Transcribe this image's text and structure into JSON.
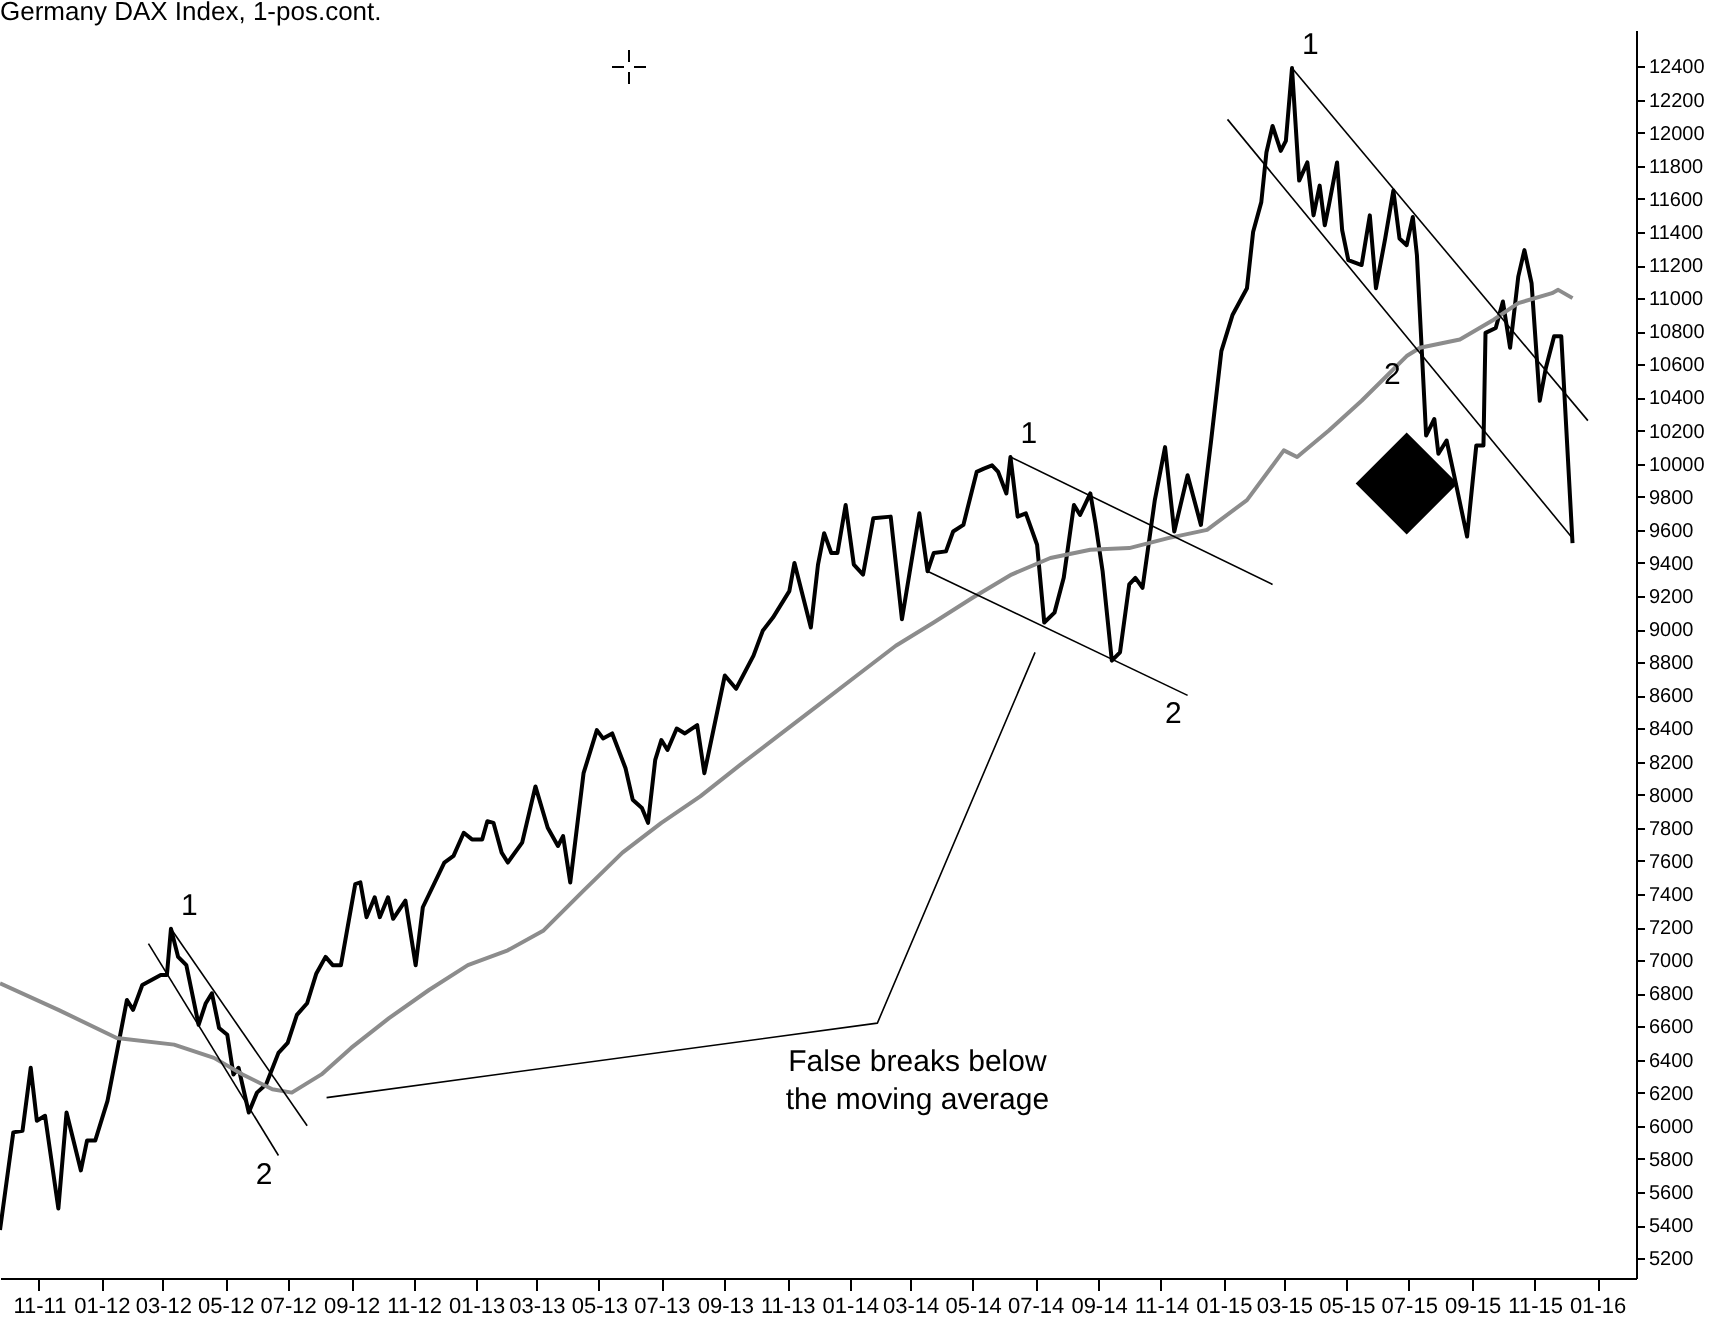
{
  "chart_data": {
    "type": "line",
    "title": "Germany DAX Index, 1-pos.cont.",
    "xlim": [
      "2011-09-24",
      "2016-02-08"
    ],
    "xticks": [
      {
        "value": "2011-11-01",
        "label": "11-11"
      },
      {
        "value": "2012-01-01",
        "label": "01-12"
      },
      {
        "value": "2012-03-01",
        "label": "03-12"
      },
      {
        "value": "2012-05-01",
        "label": "05-12"
      },
      {
        "value": "2012-07-01",
        "label": "07-12"
      },
      {
        "value": "2012-09-01",
        "label": "09-12"
      },
      {
        "value": "2012-11-01",
        "label": "11-12"
      },
      {
        "value": "2013-01-01",
        "label": "01-13"
      },
      {
        "value": "2013-03-01",
        "label": "03-13"
      },
      {
        "value": "2013-05-01",
        "label": "05-13"
      },
      {
        "value": "2013-07-01",
        "label": "07-13"
      },
      {
        "value": "2013-09-01",
        "label": "09-13"
      },
      {
        "value": "2013-11-01",
        "label": "11-13"
      },
      {
        "value": "2014-01-01",
        "label": "01-14"
      },
      {
        "value": "2014-03-01",
        "label": "03-14"
      },
      {
        "value": "2014-05-01",
        "label": "05-14"
      },
      {
        "value": "2014-07-01",
        "label": "07-14"
      },
      {
        "value": "2014-09-01",
        "label": "09-14"
      },
      {
        "value": "2014-11-01",
        "label": "11-14"
      },
      {
        "value": "2015-01-01",
        "label": "01-15"
      },
      {
        "value": "2015-03-01",
        "label": "03-15"
      },
      {
        "value": "2015-05-01",
        "label": "05-15"
      },
      {
        "value": "2015-07-01",
        "label": "07-15"
      },
      {
        "value": "2015-09-01",
        "label": "09-15"
      },
      {
        "value": "2015-11-01",
        "label": "11-15"
      },
      {
        "value": "2016-01-01",
        "label": "01-16"
      }
    ],
    "ylim": [
      5080,
      12620
    ],
    "yticks": [
      5200,
      5400,
      5600,
      5800,
      6000,
      6200,
      6400,
      6600,
      6800,
      7000,
      7200,
      7400,
      7600,
      7800,
      8000,
      8200,
      8400,
      8600,
      8800,
      9000,
      9200,
      9400,
      9600,
      9800,
      10000,
      10200,
      10400,
      10600,
      10800,
      11000,
      11200,
      11400,
      11600,
      11800,
      12000,
      12200,
      12400
    ],
    "annotations": [
      {
        "text": "1",
        "x": "2012-03-09",
        "y": 7190
      },
      {
        "text": "2",
        "x": "2012-06-22",
        "y": 5820
      },
      {
        "text": "1",
        "x": "2014-06-07",
        "y": 10040
      },
      {
        "text": "2",
        "x": "2014-11-27",
        "y": 8600
      },
      {
        "text": "1",
        "x": "2015-03-09",
        "y": 12390
      },
      {
        "text": "2",
        "x": "2015-06-29",
        "y": 10650
      },
      {
        "text": "False breaks below\nthe moving average",
        "x": "2014-01-28",
        "y": 6620
      }
    ],
    "series": [
      {
        "color": "#000000",
        "x": [
          "2011-09-24",
          "2011-10-07",
          "2011-10-16",
          "2011-10-24",
          "2011-10-30",
          "2011-11-07",
          "2011-11-20",
          "2011-11-28",
          "2011-12-12",
          "2011-12-18",
          "2011-12-26",
          "2012-01-07",
          "2012-01-26",
          "2012-02-01",
          "2012-02-10",
          "2012-02-19",
          "2012-02-28",
          "2012-03-05",
          "2012-03-09",
          "2012-03-16",
          "2012-03-24",
          "2012-04-05",
          "2012-04-12",
          "2012-04-18",
          "2012-04-25",
          "2012-05-03",
          "2012-05-09",
          "2012-05-14",
          "2012-05-24",
          "2012-06-01",
          "2012-06-10",
          "2012-06-22",
          "2012-07-01",
          "2012-07-10",
          "2012-07-20",
          "2012-07-29",
          "2012-08-07",
          "2012-08-14",
          "2012-08-22",
          "2012-09-05",
          "2012-09-10",
          "2012-09-16",
          "2012-09-24",
          "2012-09-29",
          "2012-10-07",
          "2012-10-12",
          "2012-10-24",
          "2012-11-03",
          "2012-11-10",
          "2012-12-01",
          "2012-12-10",
          "2012-12-20",
          "2012-12-28",
          "2013-01-07",
          "2013-01-12",
          "2013-01-18",
          "2013-01-26",
          "2013-02-01",
          "2013-02-15",
          "2013-02-28",
          "2013-03-12",
          "2013-03-22",
          "2013-03-27",
          "2013-04-03",
          "2013-04-16",
          "2013-04-29",
          "2013-05-05",
          "2013-05-14",
          "2013-05-27",
          "2013-06-03",
          "2013-06-12",
          "2013-06-18",
          "2013-06-25",
          "2013-07-01",
          "2013-07-07",
          "2013-07-16",
          "2013-07-24",
          "2013-08-05",
          "2013-08-12",
          "2013-09-01",
          "2013-09-12",
          "2013-09-29",
          "2013-10-08",
          "2013-10-18",
          "2013-11-03",
          "2013-11-08",
          "2013-11-24",
          "2013-12-01",
          "2013-12-07",
          "2013-12-14",
          "2013-12-20",
          "2013-12-28",
          "2014-01-05",
          "2014-01-14",
          "2014-01-24",
          "2014-02-10",
          "2014-02-21",
          "2014-03-10",
          "2014-03-18",
          "2014-03-24",
          "2014-04-05",
          "2014-04-12",
          "2014-04-22",
          "2014-05-05",
          "2014-05-12",
          "2014-05-20",
          "2014-05-26",
          "2014-06-03",
          "2014-06-07",
          "2014-06-14",
          "2014-06-22",
          "2014-07-03",
          "2014-07-10",
          "2014-07-20",
          "2014-07-29",
          "2014-08-08",
          "2014-08-14",
          "2014-08-24",
          "2014-08-29",
          "2014-09-05",
          "2014-09-14",
          "2014-09-22",
          "2014-10-01",
          "2014-10-07",
          "2014-10-14",
          "2014-10-26",
          "2014-11-05",
          "2014-11-14",
          "2014-11-27",
          "2014-12-10",
          "2014-12-20",
          "2014-12-30",
          "2015-01-10",
          "2015-01-24",
          "2015-01-30",
          "2015-02-07",
          "2015-02-12",
          "2015-02-18",
          "2015-02-26",
          "2015-03-03",
          "2015-03-09",
          "2015-03-16",
          "2015-03-24",
          "2015-03-30",
          "2015-04-05",
          "2015-04-10",
          "2015-04-14",
          "2015-04-22",
          "2015-04-27",
          "2015-05-03",
          "2015-05-16",
          "2015-05-24",
          "2015-05-30",
          "2015-06-08",
          "2015-06-16",
          "2015-06-22",
          "2015-06-29",
          "2015-07-05",
          "2015-07-09",
          "2015-07-18",
          "2015-07-26",
          "2015-07-30",
          "2015-08-07",
          "2015-08-14",
          "2015-08-27",
          "2015-09-05",
          "2015-09-12",
          "2015-09-14",
          "2015-09-24",
          "2015-10-01",
          "2015-10-08",
          "2015-10-16",
          "2015-10-22",
          "2015-10-29",
          "2015-11-06",
          "2015-11-12",
          "2015-11-20",
          "2015-11-27",
          "2015-12-08"
        ],
        "values": [
          5370,
          5960,
          5970,
          6350,
          6030,
          6060,
          5500,
          6080,
          5730,
          5910,
          5910,
          6150,
          6760,
          6700,
          6850,
          6880,
          6910,
          6910,
          7190,
          7020,
          6970,
          6610,
          6740,
          6800,
          6590,
          6550,
          6310,
          6350,
          6080,
          6200,
          6250,
          6440,
          6500,
          6670,
          6740,
          6920,
          7020,
          6970,
          6970,
          7460,
          7470,
          7260,
          7380,
          7260,
          7380,
          7250,
          7360,
          6970,
          7320,
          7590,
          7630,
          7770,
          7730,
          7730,
          7840,
          7830,
          7650,
          7590,
          7710,
          8050,
          7800,
          7690,
          7750,
          7470,
          8130,
          8390,
          8340,
          8370,
          8160,
          7970,
          7920,
          7830,
          8210,
          8330,
          8270,
          8400,
          8370,
          8420,
          8130,
          8720,
          8640,
          8840,
          8990,
          9070,
          9230,
          9400,
          9010,
          9390,
          9580,
          9460,
          9460,
          9750,
          9390,
          9330,
          9670,
          9680,
          9060,
          9700,
          9350,
          9460,
          9470,
          9590,
          9630,
          9950,
          9970,
          9990,
          9950,
          9820,
          10040,
          9680,
          9700,
          9510,
          9040,
          9100,
          9310,
          9750,
          9690,
          9820,
          9640,
          9350,
          8810,
          8860,
          9270,
          9310,
          9250,
          9780,
          10100,
          9590,
          9930,
          9630,
          10140,
          10680,
          10900,
          11060,
          11400,
          11580,
          11880,
          12040,
          11890,
          11950,
          12390,
          11710,
          11820,
          11500,
          11680,
          11440,
          11560,
          11820,
          11410,
          11230,
          11200,
          11500,
          11060,
          11360,
          11650,
          11360,
          11320,
          11490,
          11260,
          10170,
          10270,
          10060,
          10140,
          9940,
          9560,
          10110,
          10110,
          10790,
          10820,
          10980,
          10700,
          11130,
          11290,
          11090,
          10380,
          10580,
          10770,
          10770,
          9520
        ]
      },
      {
        "color": "#8c8c8c",
        "x": [
          "2011-09-24",
          "2011-11-20",
          "2012-01-16",
          "2012-03-12",
          "2012-04-20",
          "2012-05-18",
          "2012-06-16",
          "2012-07-05",
          "2012-08-03",
          "2012-09-01",
          "2012-10-08",
          "2012-11-16",
          "2012-12-24",
          "2013-02-01",
          "2013-03-08",
          "2013-04-16",
          "2013-05-24",
          "2013-07-01",
          "2013-08-08",
          "2013-09-16",
          "2013-10-24",
          "2013-12-01",
          "2014-01-08",
          "2014-02-15",
          "2014-03-24",
          "2014-05-01",
          "2014-06-08",
          "2014-07-16",
          "2014-08-24",
          "2014-10-01",
          "2014-11-08",
          "2014-12-16",
          "2015-01-24",
          "2015-03-01",
          "2015-03-14",
          "2015-04-14",
          "2015-05-16",
          "2015-06-29",
          "2015-07-12",
          "2015-08-20",
          "2015-09-22",
          "2015-10-16",
          "2015-11-18",
          "2015-11-24",
          "2015-12-08"
        ],
        "values": [
          6860,
          6700,
          6530,
          6490,
          6410,
          6310,
          6220,
          6200,
          6310,
          6470,
          6650,
          6820,
          6970,
          7060,
          7180,
          7420,
          7650,
          7830,
          7990,
          8180,
          8360,
          8540,
          8720,
          8900,
          9040,
          9190,
          9330,
          9430,
          9480,
          9490,
          9550,
          9600,
          9780,
          10080,
          10040,
          10200,
          10380,
          10650,
          10700,
          10750,
          10870,
          10970,
          11030,
          11050,
          11000
        ]
      },
      {
        "type": "line",
        "color": "#000000",
        "x": [
          "2012-03-09",
          "2012-07-20"
        ],
        "values": [
          7190,
          6000
        ]
      },
      {
        "type": "line",
        "color": "#000000",
        "x": [
          "2012-02-16",
          "2012-06-22"
        ],
        "values": [
          7100,
          5820
        ]
      },
      {
        "type": "line",
        "color": "#000000",
        "x": [
          "2014-06-07",
          "2015-02-18"
        ],
        "values": [
          10040,
          9270
        ]
      },
      {
        "type": "line",
        "color": "#000000",
        "x": [
          "2014-03-18",
          "2014-11-27"
        ],
        "values": [
          9350,
          8600
        ]
      },
      {
        "type": "line",
        "color": "#000000",
        "x": [
          "2015-03-09",
          "2015-12-23"
        ],
        "values": [
          12390,
          10260
        ]
      },
      {
        "type": "line",
        "color": "#000000",
        "x": [
          "2015-01-05",
          "2015-12-08"
        ],
        "values": [
          12080,
          9550
        ]
      },
      {
        "type": "line",
        "color": "#000000",
        "x": [
          "2012-08-08",
          "2014-01-28",
          "2014-07-01"
        ],
        "values": [
          6170,
          6620,
          8860
        ]
      },
      {
        "type": "scatter",
        "marker": "diamond",
        "color": "#000000",
        "x": [
          "2015-06-29"
        ],
        "values": [
          9880
        ]
      }
    ]
  }
}
